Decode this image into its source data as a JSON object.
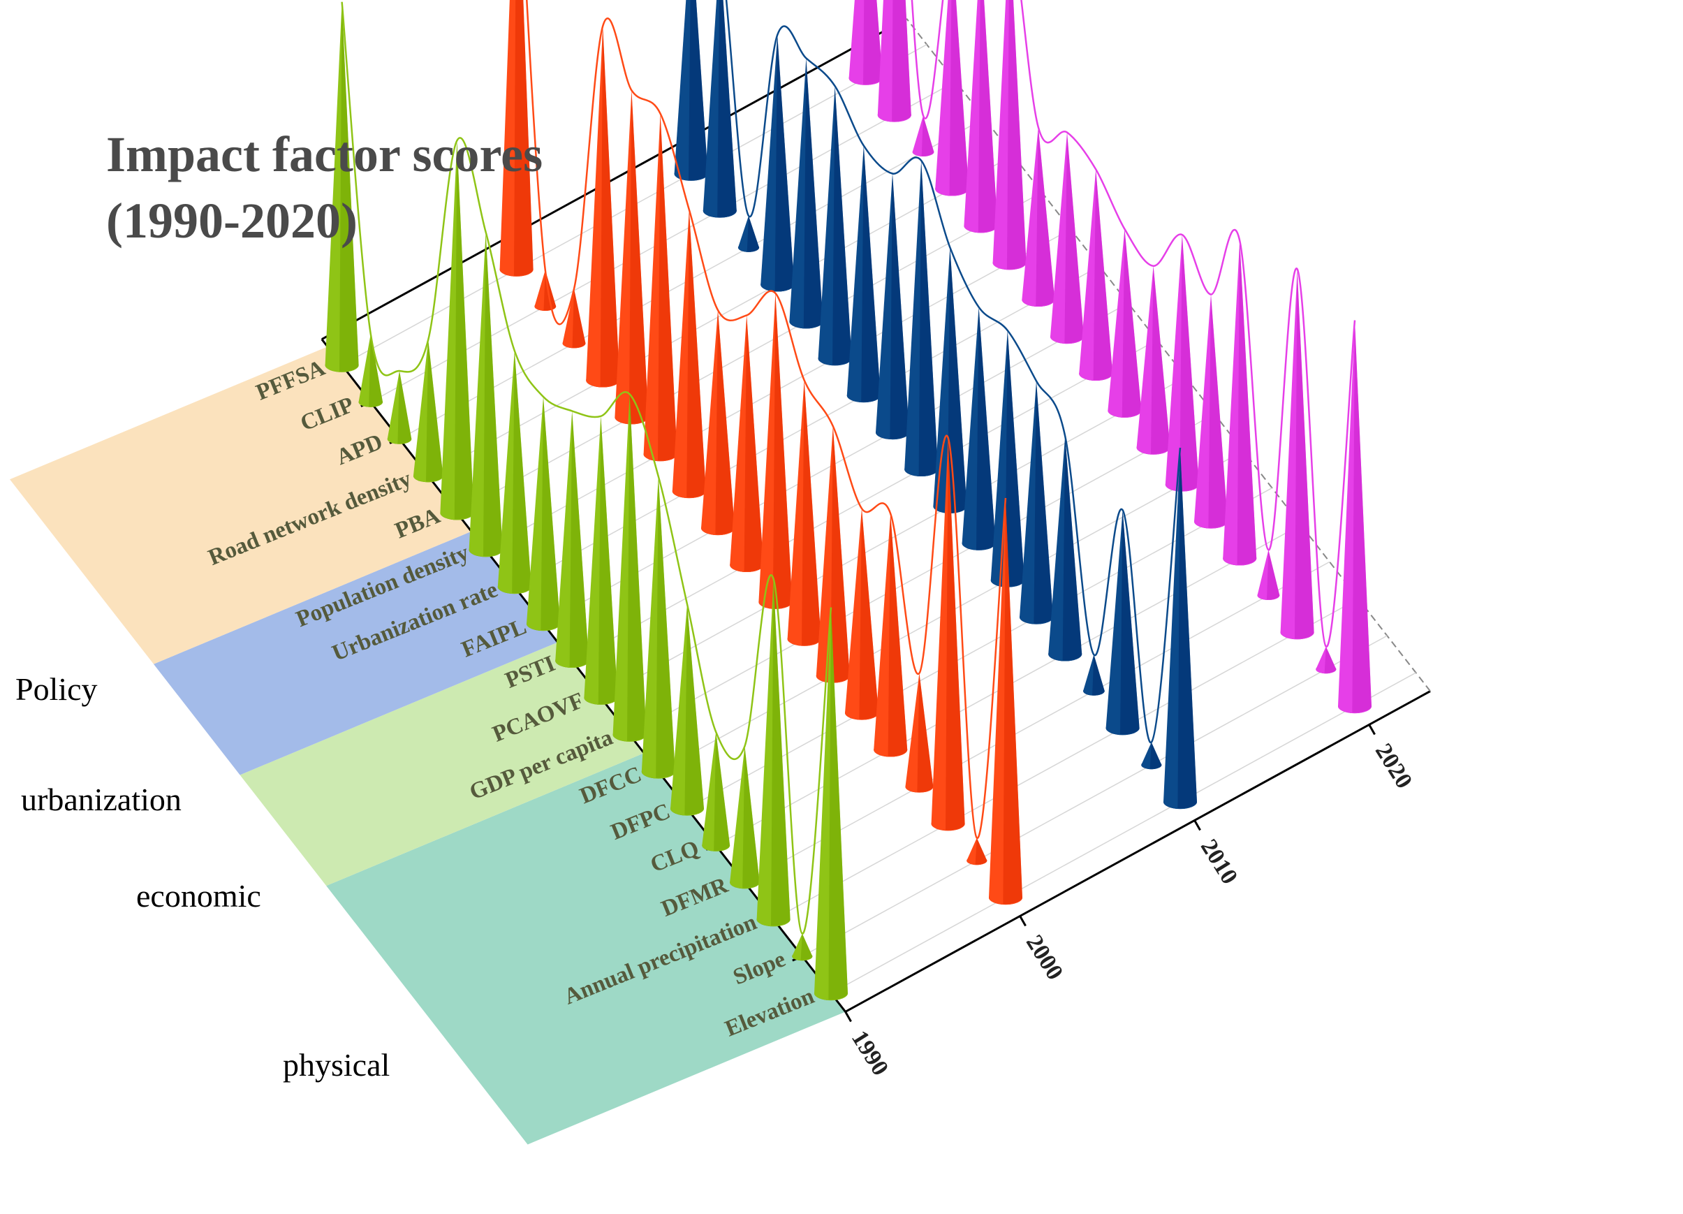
{
  "chart_data": {
    "type": "3d-cone",
    "title_lines": [
      "Impact factor scores",
      "(1990-2020)"
    ],
    "factors": [
      "Elevation",
      "Slope",
      "Annual precipitation",
      "DFMR",
      "CLQ",
      "DFPC",
      "DFCC",
      "GDP per capita",
      "PCAOVF",
      "PSTI",
      "FAIPL",
      "Urbanization rate",
      "Population density",
      "PBA",
      "Road network density",
      "APD",
      "CLIP",
      "PFFSA"
    ],
    "groups": [
      {
        "name": "physical",
        "start": 0,
        "end": 6,
        "color": "#9ed9c6"
      },
      {
        "name": "economic",
        "start": 7,
        "end": 9,
        "color": "#cdeab1"
      },
      {
        "name": "urbanization",
        "start": 10,
        "end": 12,
        "color": "#a3bbe9"
      },
      {
        "name": "Policy",
        "start": 13,
        "end": 17,
        "color": "#fbe2bd"
      }
    ],
    "years": [
      "1990",
      "2000",
      "2010",
      "2020"
    ],
    "series": [
      {
        "name": "1990",
        "color": "#8fc416",
        "values": [
          0.85,
          0.05,
          0.75,
          0.3,
          0.25,
          0.45,
          0.65,
          0.75,
          0.62,
          0.55,
          0.5,
          0.52,
          0.7,
          0.82,
          0.3,
          0.15,
          0.15,
          0.8
        ]
      },
      {
        "name": "2000",
        "color": "#ff4a16",
        "values": [
          0.88,
          0.05,
          0.85,
          0.25,
          0.52,
          0.45,
          0.55,
          0.57,
          0.68,
          0.55,
          0.48,
          0.62,
          0.75,
          0.72,
          0.78,
          0.12,
          0.08,
          1.0
        ]
      },
      {
        "name": "2010",
        "color": "#0b4a8b",
        "values": [
          0.78,
          0.05,
          0.48,
          0.08,
          0.48,
          0.52,
          0.55,
          0.52,
          0.57,
          0.68,
          0.57,
          0.55,
          0.6,
          0.58,
          0.55,
          0.07,
          0.58,
          0.55
        ]
      },
      {
        "name": "2020",
        "color": "#e63fe8",
        "values": [
          0.85,
          0.05,
          0.8,
          0.1,
          0.7,
          0.5,
          0.55,
          0.4,
          0.4,
          0.45,
          0.45,
          0.38,
          0.75,
          0.62,
          0.55,
          0.08,
          0.75,
          0.5
        ]
      }
    ]
  }
}
